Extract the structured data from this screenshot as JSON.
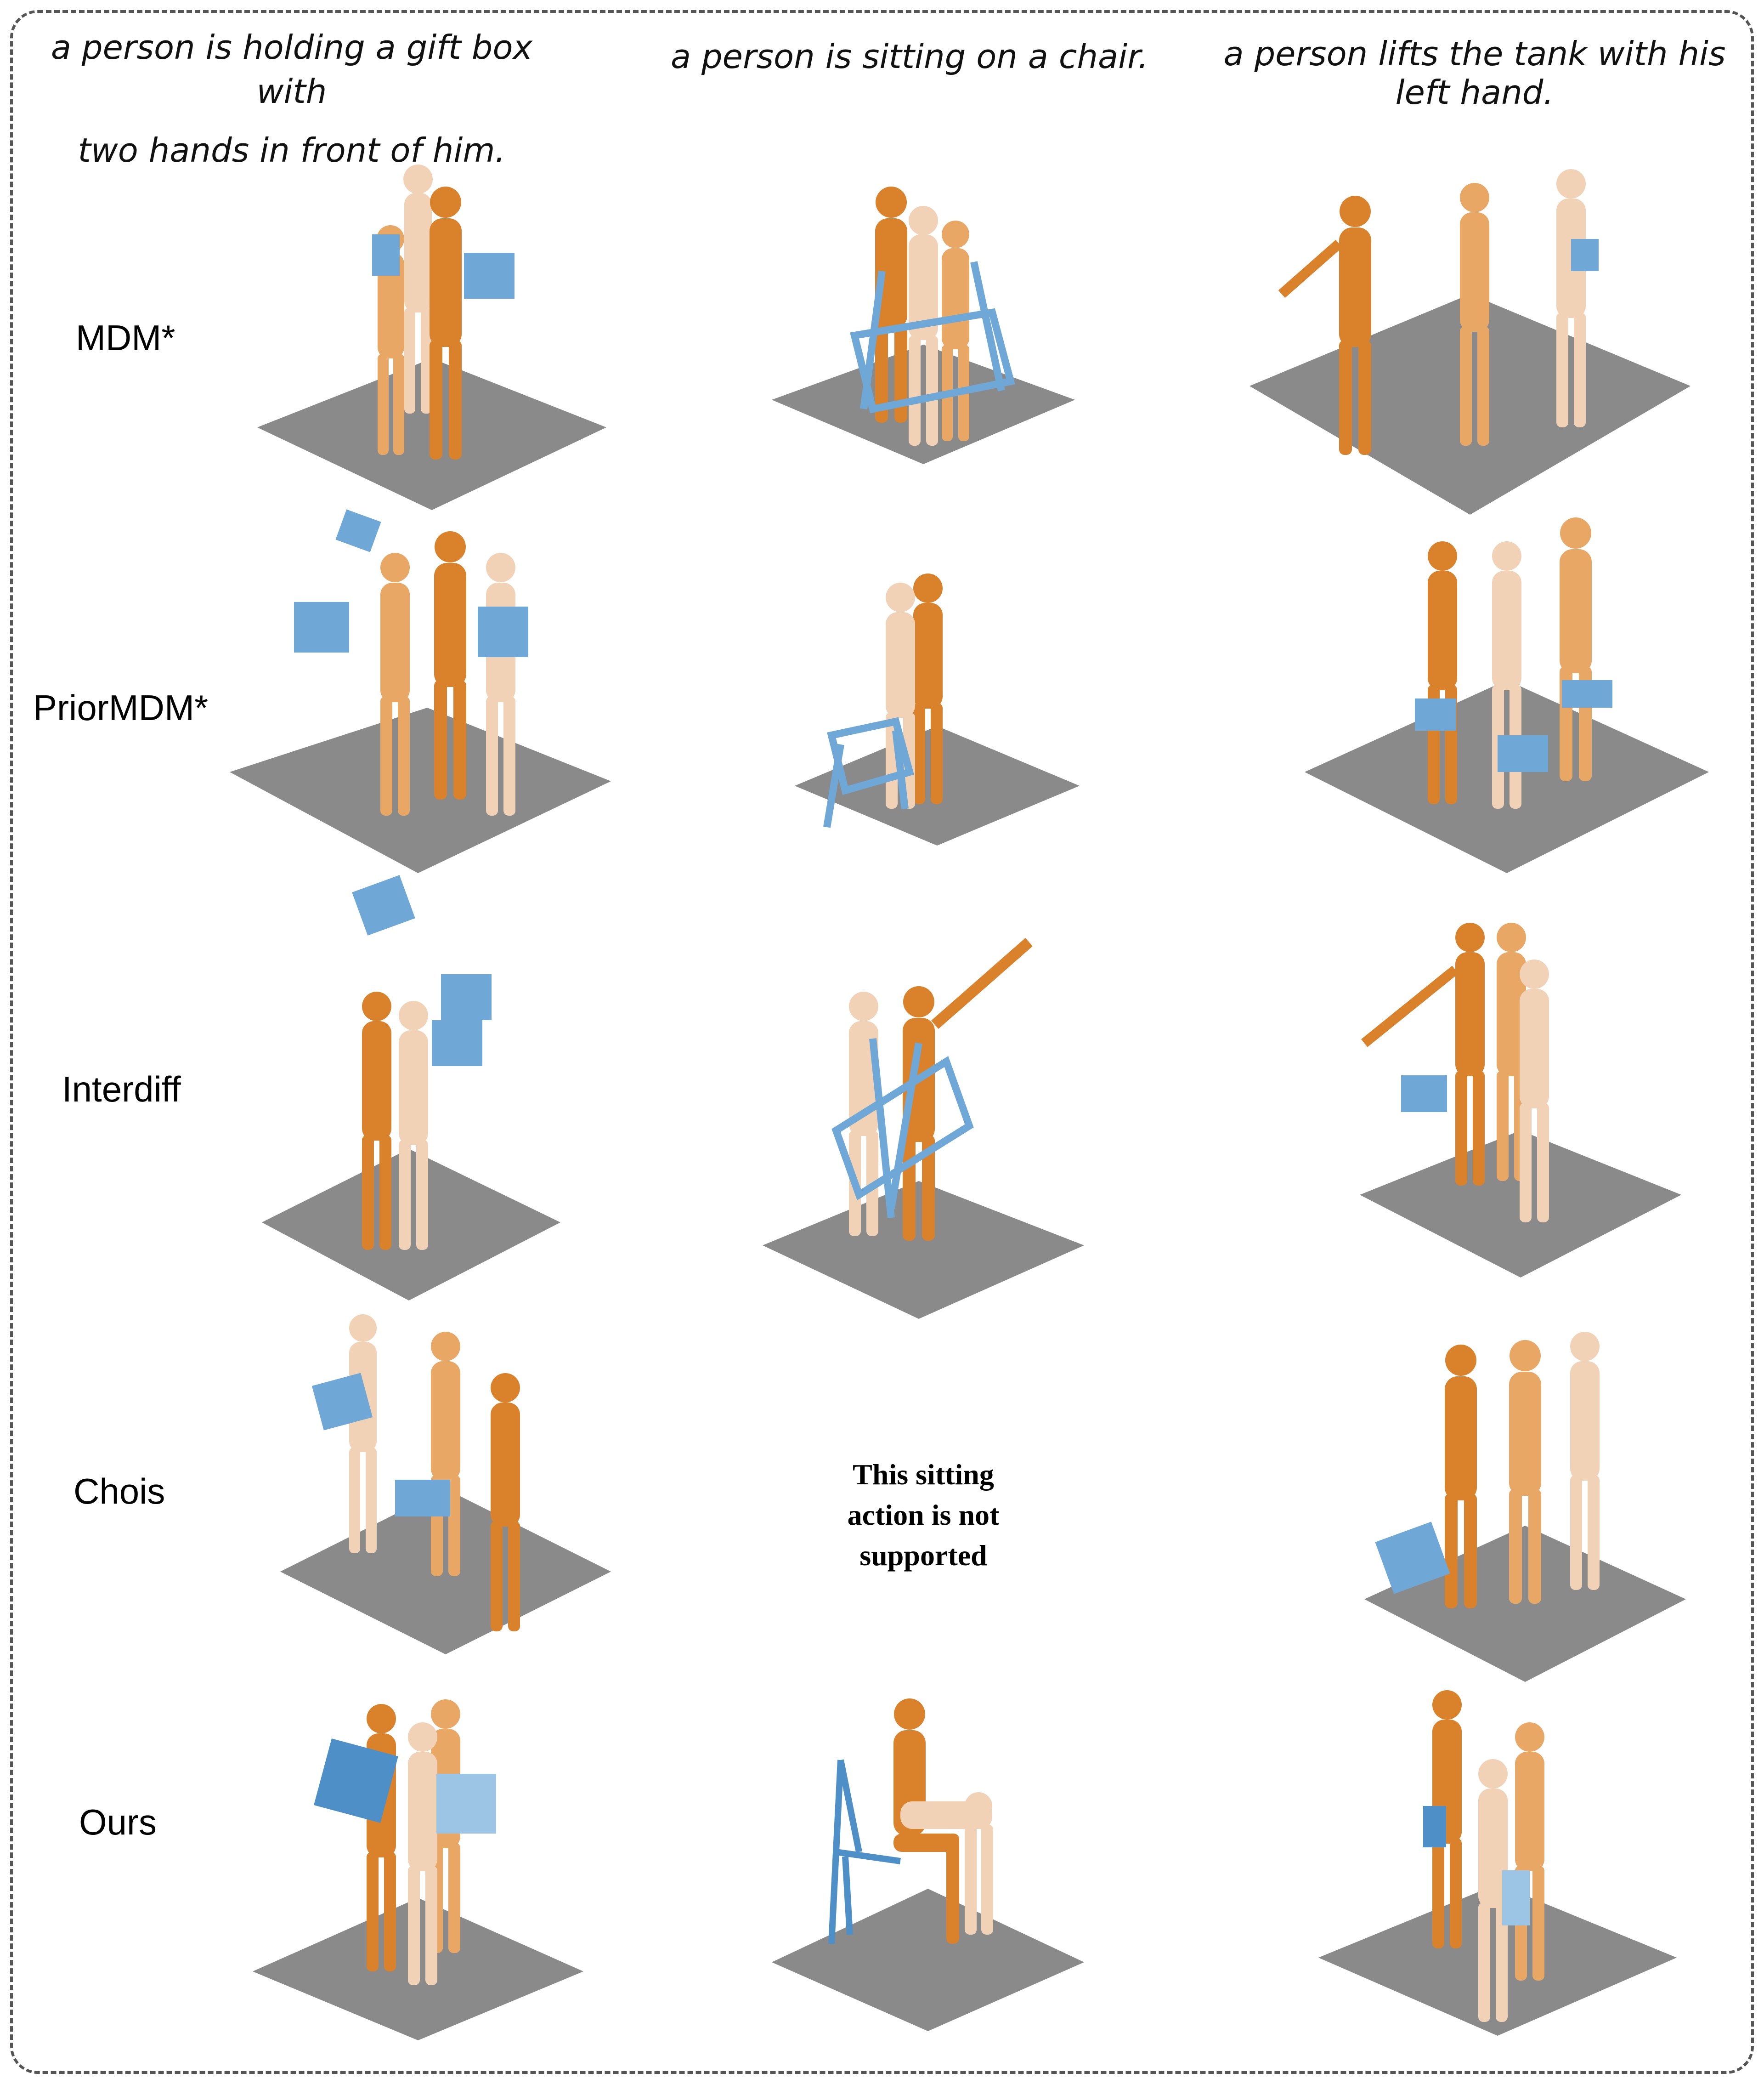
{
  "captions": [
    [
      "a person is holding a gift box with",
      "two hands in front of him."
    ],
    [
      "a person is sitting on a chair."
    ],
    [
      "a person lifts the tank with his",
      "left hand."
    ]
  ],
  "rows": [
    "MDM*",
    "PriorMDM*",
    "Interdiff",
    "Chois",
    "Ours"
  ],
  "note": [
    "This sitting",
    "action is not",
    "supported"
  ],
  "colors": {
    "floor": "#8a8a8a",
    "figure_dark": "#d9822b",
    "figure_mid": "#e9a766",
    "figure_light": "#f2d2b6",
    "object": "#6fa7d6",
    "frame": "#555555"
  }
}
